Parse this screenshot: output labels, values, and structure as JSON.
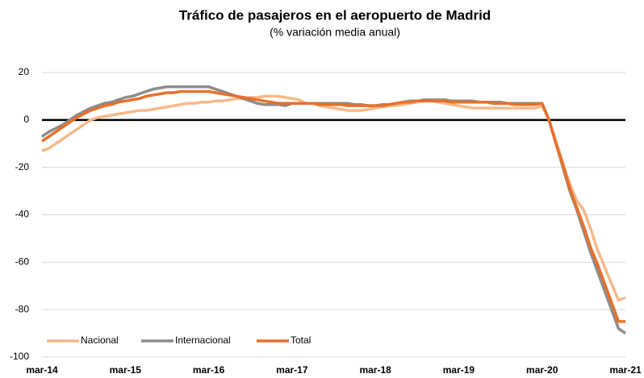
{
  "chart_data": {
    "type": "line",
    "title": "Tráfico de pasajeros en el aeropuerto de Madrid",
    "subtitle": "(% variación media anual)",
    "categories": [
      "mar-14",
      null,
      null,
      null,
      null,
      null,
      null,
      null,
      null,
      null,
      null,
      null,
      "mar-15",
      null,
      null,
      null,
      null,
      null,
      null,
      null,
      null,
      null,
      null,
      null,
      "mar-16",
      null,
      null,
      null,
      null,
      null,
      null,
      null,
      null,
      null,
      null,
      null,
      "mar-17",
      null,
      null,
      null,
      null,
      null,
      null,
      null,
      null,
      null,
      null,
      null,
      "mar-18",
      null,
      null,
      null,
      null,
      null,
      null,
      null,
      null,
      null,
      null,
      null,
      "mar-19",
      null,
      null,
      null,
      null,
      null,
      null,
      null,
      null,
      null,
      null,
      null,
      "mar-20",
      null,
      null,
      null,
      null,
      null,
      null,
      null,
      null,
      null,
      null,
      null,
      "mar-21"
    ],
    "series": [
      {
        "name": "Nacional",
        "color": "#f7b98a",
        "values": [
          -13,
          -12,
          -10,
          -8,
          -6,
          -4,
          -2,
          0,
          1,
          1.5,
          2,
          2.5,
          3,
          3.5,
          4,
          4,
          4.5,
          5,
          5.5,
          6,
          6.5,
          7,
          7,
          7.5,
          7.5,
          8,
          8,
          8.5,
          9,
          9,
          9.5,
          9.5,
          10,
          10,
          10,
          9.5,
          9,
          8.5,
          7,
          7,
          6,
          5.5,
          5,
          4.5,
          4,
          4,
          4,
          4.5,
          5,
          5.5,
          6,
          6,
          6.5,
          7,
          7.5,
          8,
          8,
          7.5,
          7,
          6.5,
          6,
          5.5,
          5,
          5,
          5,
          5,
          5,
          5,
          5,
          5,
          5,
          5,
          6,
          0,
          -9,
          -18,
          -27,
          -34,
          -38,
          -46,
          -55,
          -62,
          -69,
          -76,
          -75
        ]
      },
      {
        "name": "Internacional",
        "color": "#8c8c8c",
        "values": [
          -7,
          -5,
          -3.5,
          -2,
          0,
          2,
          3.5,
          5,
          6,
          7,
          7.5,
          8.5,
          9.5,
          10,
          11,
          12,
          13,
          13.5,
          14,
          14,
          14,
          14,
          14,
          14,
          14,
          13,
          12,
          11,
          10,
          9,
          8,
          7,
          6.5,
          6.5,
          6.5,
          6,
          7,
          7,
          7,
          7,
          7,
          7,
          7,
          7,
          7,
          6.5,
          6.5,
          6,
          6,
          6.5,
          6.5,
          7,
          7.5,
          8,
          8,
          8.5,
          8.5,
          8.5,
          8.5,
          8,
          8,
          8,
          8,
          7.5,
          7.5,
          7.5,
          7.5,
          7,
          7,
          7,
          7,
          7,
          7,
          0,
          -10,
          -20,
          -30,
          -38,
          -47,
          -56,
          -64,
          -72,
          -80,
          -88,
          -90
        ]
      },
      {
        "name": "Total",
        "color": "#e8702a",
        "values": [
          -9,
          -7,
          -5,
          -3,
          -1,
          1,
          2.5,
          4,
          5,
          6,
          6.5,
          7.5,
          8,
          8.5,
          9,
          10,
          10.5,
          11,
          11.5,
          11.5,
          12,
          12,
          12,
          12,
          12,
          11.5,
          11,
          10.5,
          10,
          9.5,
          9,
          8.5,
          8,
          7.5,
          7,
          7,
          7,
          7,
          7,
          7,
          6.5,
          6.5,
          6.5,
          6.5,
          6,
          6,
          6,
          6,
          6,
          6,
          6.5,
          7,
          7.5,
          7.5,
          8,
          8,
          8,
          8,
          8,
          7.5,
          7.5,
          7.5,
          7.5,
          7.5,
          7.5,
          7,
          7,
          7,
          6.5,
          6.5,
          6.5,
          6.5,
          7,
          0,
          -10,
          -19,
          -29,
          -37,
          -45,
          -54,
          -61,
          -69,
          -77,
          -85,
          -85
        ]
      }
    ],
    "ylim": [
      -100,
      20
    ],
    "yticks": [
      -100,
      -80,
      -60,
      -40,
      -20,
      0,
      20
    ],
    "grid": true,
    "legend": "lower left"
  }
}
